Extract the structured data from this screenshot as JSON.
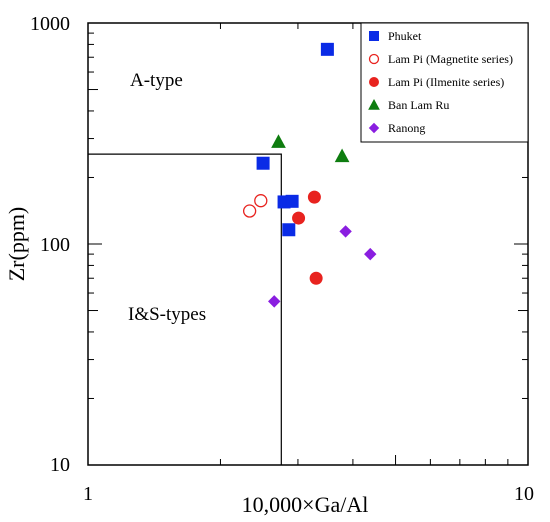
{
  "chart_data": {
    "type": "scatter",
    "xlabel": "10,000×Ga/Al",
    "ylabel": "Zr(ppm)",
    "xscale": "log",
    "yscale": "log",
    "xlim": [
      1,
      10
    ],
    "ylim": [
      10,
      1000
    ],
    "x_tick_labels": [
      "1",
      "10"
    ],
    "y_tick_labels": [
      "10",
      "100",
      "1000"
    ],
    "legend_placement": "top-right",
    "regions": [
      {
        "label": "A-type"
      },
      {
        "label": "I&S-types"
      }
    ],
    "boundary": {
      "ga_al_max": 2.75,
      "zr_max": 255
    },
    "series": [
      {
        "name": "Phuket",
        "marker": "square",
        "color": "#0a2be6",
        "filled": true,
        "points": [
          {
            "x": 3.5,
            "y": 760
          },
          {
            "x": 2.5,
            "y": 232
          },
          {
            "x": 2.79,
            "y": 155
          },
          {
            "x": 2.91,
            "y": 156
          },
          {
            "x": 2.86,
            "y": 116
          }
        ]
      },
      {
        "name": "Lam Pi (Magnetite series)",
        "marker": "circle",
        "color": "#e8231f",
        "filled": false,
        "points": [
          {
            "x": 2.33,
            "y": 141
          },
          {
            "x": 2.47,
            "y": 157
          }
        ]
      },
      {
        "name": "Lam Pi (Ilmenite series)",
        "marker": "circle",
        "color": "#e8231f",
        "filled": true,
        "points": [
          {
            "x": 3.27,
            "y": 163
          },
          {
            "x": 3.01,
            "y": 131
          },
          {
            "x": 3.3,
            "y": 70
          }
        ]
      },
      {
        "name": "Ban Lam Ru",
        "marker": "triangle",
        "color": "#0f7d10",
        "filled": true,
        "points": [
          {
            "x": 2.71,
            "y": 290
          },
          {
            "x": 3.78,
            "y": 250
          }
        ]
      },
      {
        "name": "Ranong",
        "marker": "diamond",
        "color": "#8a1ee0",
        "filled": true,
        "points": [
          {
            "x": 3.85,
            "y": 114
          },
          {
            "x": 4.38,
            "y": 90
          },
          {
            "x": 2.65,
            "y": 55
          }
        ]
      }
    ]
  }
}
